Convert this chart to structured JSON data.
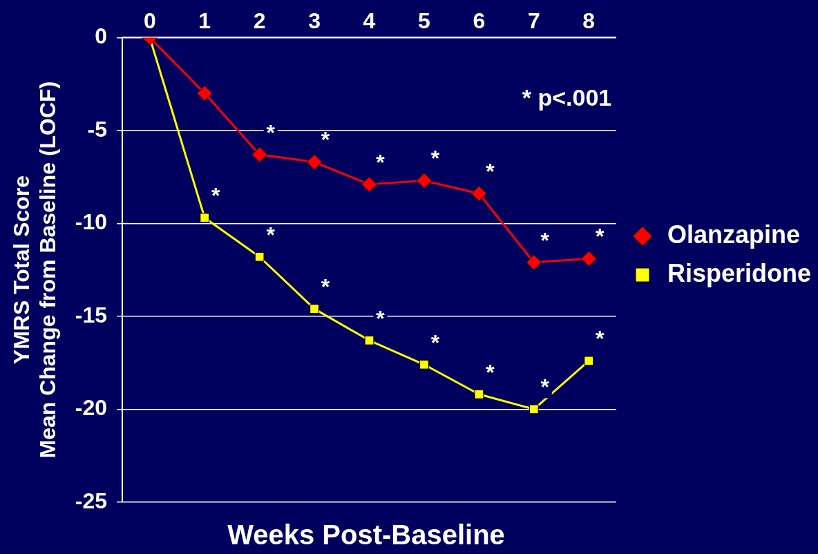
{
  "chart_data": {
    "type": "line",
    "xlabel": "Weeks Post-Baseline",
    "ylabel": "YMRS Total Score\nMean Change from Baseline (LOCF)",
    "x": [
      0,
      1,
      2,
      3,
      4,
      5,
      6,
      7,
      8
    ],
    "series": [
      {
        "name": "Olanzapine",
        "color": "#ff0000",
        "marker": "diamond",
        "values": [
          0,
          -3.0,
          -6.3,
          -6.7,
          -7.9,
          -7.7,
          -8.4,
          -12.1,
          -11.9
        ]
      },
      {
        "name": "Risperidone",
        "color": "#ffff00",
        "marker": "square",
        "values": [
          0,
          -9.7,
          -11.8,
          -14.6,
          -16.3,
          -17.6,
          -19.2,
          -20.0,
          -17.4
        ]
      }
    ],
    "xlim": [
      -0.5,
      8.5
    ],
    "xticks": [
      0,
      1,
      2,
      3,
      4,
      5,
      6,
      7,
      8
    ],
    "ylim": [
      -25,
      0
    ],
    "yticks": [
      -25,
      -20,
      -15,
      -10,
      -5,
      0
    ],
    "grid": "y",
    "legend": "right",
    "line_style": "solid",
    "annotations": [
      "* p<.001",
      {
        "text": "*",
        "x": 2,
        "y": -6.3
      },
      {
        "text": "*",
        "x": 3,
        "y": -6.7
      },
      {
        "text": "*",
        "x": 4,
        "y": -7.9
      },
      {
        "text": "*",
        "x": 5,
        "y": -7.7
      },
      {
        "text": "*",
        "x": 6,
        "y": -8.4
      },
      {
        "text": "*",
        "x": 7,
        "y": -12.1
      },
      {
        "text": "*",
        "x": 8,
        "y": -11.9
      },
      {
        "text": "*",
        "x": 1,
        "y": -9.7
      },
      {
        "text": "*",
        "x": 2,
        "y": -11.8
      },
      {
        "text": "*",
        "x": 3,
        "y": -14.6
      },
      {
        "text": "*",
        "x": 4,
        "y": -16.3
      },
      {
        "text": "*",
        "x": 5,
        "y": -17.6
      },
      {
        "text": "*",
        "x": 6,
        "y": -19.2
      },
      {
        "text": "*",
        "x": 7,
        "y": -20.0
      },
      {
        "text": "*",
        "x": 8,
        "y": -17.4
      }
    ]
  }
}
